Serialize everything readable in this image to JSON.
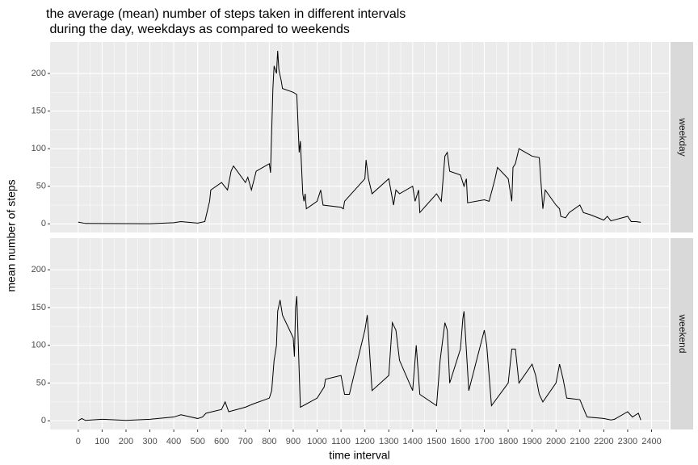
{
  "chart_data": {
    "type": "line",
    "title": [
      "the average (mean) number of steps taken in different intervals",
      " during the day, weekdays as compared to weekends"
    ],
    "xlabel": "time interval",
    "ylabel": "mean number of steps",
    "xlim": [
      -117.75,
      2472.75
    ],
    "ylim": [
      -11.52,
      241.9
    ],
    "xticks": [
      0,
      100,
      200,
      300,
      400,
      500,
      600,
      700,
      800,
      900,
      1000,
      1100,
      1200,
      1300,
      1400,
      1500,
      1600,
      1700,
      1800,
      1900,
      2000,
      2100,
      2200,
      2300,
      2400
    ],
    "yticks": [
      0,
      50,
      100,
      150,
      200
    ],
    "grid": true,
    "minor_grid": true,
    "series": [
      {
        "name": "weekday",
        "color": "#000000",
        "x": [
          0,
          30,
          100,
          200,
          300,
          400,
          430,
          500,
          530,
          550,
          555,
          600,
          625,
          640,
          650,
          700,
          710,
          725,
          745,
          800,
          805,
          815,
          820,
          830,
          835,
          840,
          850,
          855,
          900,
          915,
          925,
          930,
          935,
          940,
          945,
          950,
          955,
          1000,
          1015,
          1025,
          1100,
          1110,
          1115,
          1200,
          1205,
          1215,
          1230,
          1300,
          1320,
          1330,
          1345,
          1400,
          1410,
          1425,
          1430,
          1500,
          1520,
          1535,
          1545,
          1555,
          1600,
          1615,
          1625,
          1630,
          1700,
          1720,
          1745,
          1755,
          1800,
          1815,
          1820,
          1830,
          1845,
          1900,
          1930,
          1945,
          1955,
          2000,
          2015,
          2020,
          2040,
          2055,
          2100,
          2115,
          2145,
          2200,
          2215,
          2230,
          2300,
          2315,
          2335,
          2355
        ],
        "values": [
          2.3,
          0.5,
          0.4,
          0.3,
          0.2,
          1.5,
          3,
          1,
          3,
          30,
          45,
          55,
          45,
          70,
          77,
          55,
          62,
          45,
          70,
          80,
          68,
          180,
          210,
          200,
          230,
          205,
          190,
          180,
          175,
          172,
          95,
          110,
          75,
          40,
          30,
          40,
          20,
          30,
          45,
          25,
          22,
          20,
          30,
          60,
          85,
          60,
          40,
          60,
          25,
          45,
          40,
          50,
          30,
          45,
          15,
          40,
          30,
          90,
          95,
          70,
          65,
          50,
          60,
          28,
          32,
          30,
          60,
          75,
          60,
          30,
          75,
          80,
          100,
          90,
          88,
          20,
          45,
          25,
          20,
          10,
          8,
          15,
          25,
          15,
          12,
          5,
          10,
          4,
          10,
          3,
          3,
          2
        ]
      },
      {
        "name": "weekend",
        "color": "#000000",
        "x": [
          0,
          15,
          30,
          100,
          200,
          300,
          400,
          430,
          500,
          520,
          535,
          600,
          615,
          630,
          700,
          730,
          800,
          810,
          820,
          830,
          835,
          845,
          855,
          900,
          905,
          910,
          915,
          925,
          930,
          1000,
          1030,
          1035,
          1100,
          1115,
          1135,
          1200,
          1210,
          1230,
          1300,
          1315,
          1330,
          1345,
          1400,
          1415,
          1430,
          1500,
          1515,
          1535,
          1545,
          1555,
          1600,
          1610,
          1615,
          1635,
          1700,
          1710,
          1715,
          1730,
          1800,
          1815,
          1830,
          1845,
          1900,
          1915,
          1930,
          1945,
          2000,
          2015,
          2030,
          2045,
          2100,
          2130,
          2200,
          2230,
          2245,
          2300,
          2320,
          2345,
          2355
        ],
        "values": [
          0.2,
          3,
          0.5,
          2,
          0.5,
          2,
          5,
          8,
          3,
          5,
          10,
          15,
          25,
          12,
          18,
          22,
          30,
          40,
          80,
          100,
          145,
          160,
          140,
          110,
          85,
          150,
          165,
          65,
          18,
          30,
          45,
          55,
          60,
          35,
          35,
          120,
          140,
          40,
          60,
          130,
          120,
          80,
          40,
          100,
          35,
          20,
          80,
          130,
          120,
          50,
          95,
          135,
          145,
          40,
          120,
          100,
          80,
          20,
          50,
          95,
          95,
          50,
          75,
          60,
          35,
          25,
          50,
          75,
          55,
          30,
          28,
          5,
          3,
          1,
          2,
          12,
          5,
          10,
          1
        ]
      }
    ]
  }
}
